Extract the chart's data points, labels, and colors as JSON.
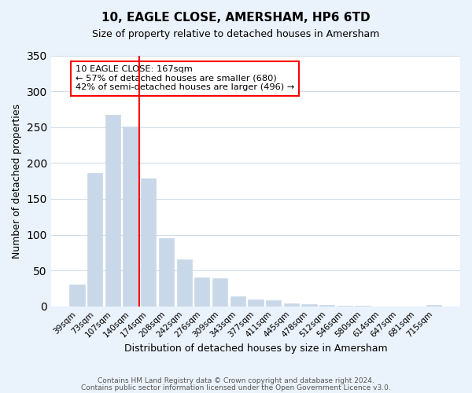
{
  "title": "10, EAGLE CLOSE, AMERSHAM, HP6 6TD",
  "subtitle": "Size of property relative to detached houses in Amersham",
  "xlabel": "Distribution of detached houses by size in Amersham",
  "ylabel": "Number of detached properties",
  "footer_line1": "Contains HM Land Registry data © Crown copyright and database right 2024.",
  "footer_line2": "Contains public sector information licensed under the Open Government Licence v3.0.",
  "bar_labels": [
    "39sqm",
    "73sqm",
    "107sqm",
    "140sqm",
    "174sqm",
    "208sqm",
    "242sqm",
    "276sqm",
    "309sqm",
    "343sqm",
    "377sqm",
    "411sqm",
    "445sqm",
    "478sqm",
    "512sqm",
    "546sqm",
    "580sqm",
    "614sqm",
    "647sqm",
    "681sqm",
    "715sqm"
  ],
  "bar_values": [
    30,
    186,
    267,
    251,
    178,
    95,
    65,
    40,
    39,
    14,
    10,
    8,
    4,
    3,
    2,
    1,
    1,
    0,
    0,
    0,
    2
  ],
  "bar_color": "#c8d8e8",
  "vline_x": 3.5,
  "vline_color": "red",
  "annotation_title": "10 EAGLE CLOSE: 167sqm",
  "annotation_line1": "← 57% of detached houses are smaller (680)",
  "annotation_line2": "42% of semi-detached houses are larger (496) →",
  "annotation_box_color": "white",
  "annotation_box_edge_color": "red",
  "ylim": [
    0,
    350
  ],
  "yticks": [
    0,
    50,
    100,
    150,
    200,
    250,
    300,
    350
  ],
  "grid_color": "#d0dce8",
  "background_color": "#eaf2fb",
  "plot_background": "white",
  "figsize": [
    6.0,
    5.0
  ],
  "dpi": 100
}
